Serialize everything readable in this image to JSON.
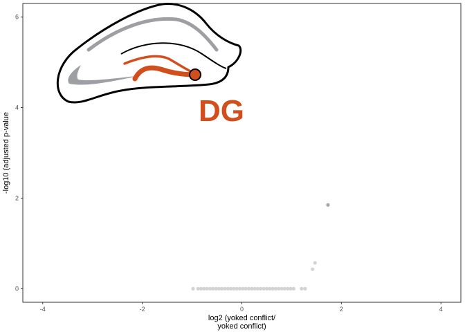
{
  "colors": {
    "background": "#ffffff",
    "frame": "#333333",
    "tick": "#333333",
    "point_nonsig": "#d3d3d3",
    "point_highlight": "#a8a8a8",
    "region_accent": "#d24e1c",
    "region_gray": "#9d9fa3",
    "outline": "#000000"
  },
  "inset": {
    "region_label": "DG",
    "icon": "hippocampus-schematic-icon"
  },
  "chart_data": {
    "type": "scatter",
    "title": "",
    "xlabel_lines": [
      "log2 (yoked conflict/",
      "yoked conflict)"
    ],
    "ylabel": "-log10 (adjusted p-value",
    "xlim": [
      -4.4,
      4.4
    ],
    "ylim": [
      -0.3,
      6.3
    ],
    "xticks": [
      -4,
      -2,
      0,
      2,
      4
    ],
    "yticks": [
      0,
      2,
      4,
      6
    ],
    "grid": false,
    "legend": "none",
    "series": [
      {
        "role": "not-significant",
        "points": [
          [
            -0.98,
            0
          ],
          [
            -0.88,
            0
          ],
          [
            -0.82,
            0
          ],
          [
            -0.76,
            0
          ],
          [
            -0.7,
            0
          ],
          [
            -0.64,
            0
          ],
          [
            -0.58,
            0
          ],
          [
            -0.52,
            0
          ],
          [
            -0.46,
            0
          ],
          [
            -0.4,
            0
          ],
          [
            -0.34,
            0
          ],
          [
            -0.28,
            0
          ],
          [
            -0.22,
            0
          ],
          [
            -0.16,
            0
          ],
          [
            -0.1,
            0
          ],
          [
            -0.04,
            0
          ],
          [
            0.02,
            0
          ],
          [
            0.08,
            0
          ],
          [
            0.14,
            0
          ],
          [
            0.2,
            0
          ],
          [
            0.26,
            0
          ],
          [
            0.32,
            0
          ],
          [
            0.38,
            0
          ],
          [
            0.44,
            0
          ],
          [
            0.5,
            0
          ],
          [
            0.56,
            0
          ],
          [
            0.62,
            0
          ],
          [
            0.68,
            0
          ],
          [
            0.74,
            0
          ],
          [
            0.8,
            0
          ],
          [
            0.86,
            0
          ],
          [
            0.92,
            0
          ],
          [
            0.98,
            0
          ],
          [
            1.04,
            0
          ],
          [
            1.2,
            0
          ],
          [
            1.27,
            0
          ],
          [
            1.42,
            0.43
          ],
          [
            1.47,
            0.57
          ]
        ]
      },
      {
        "role": "highlight",
        "points": [
          [
            1.73,
            1.85
          ]
        ]
      }
    ]
  }
}
